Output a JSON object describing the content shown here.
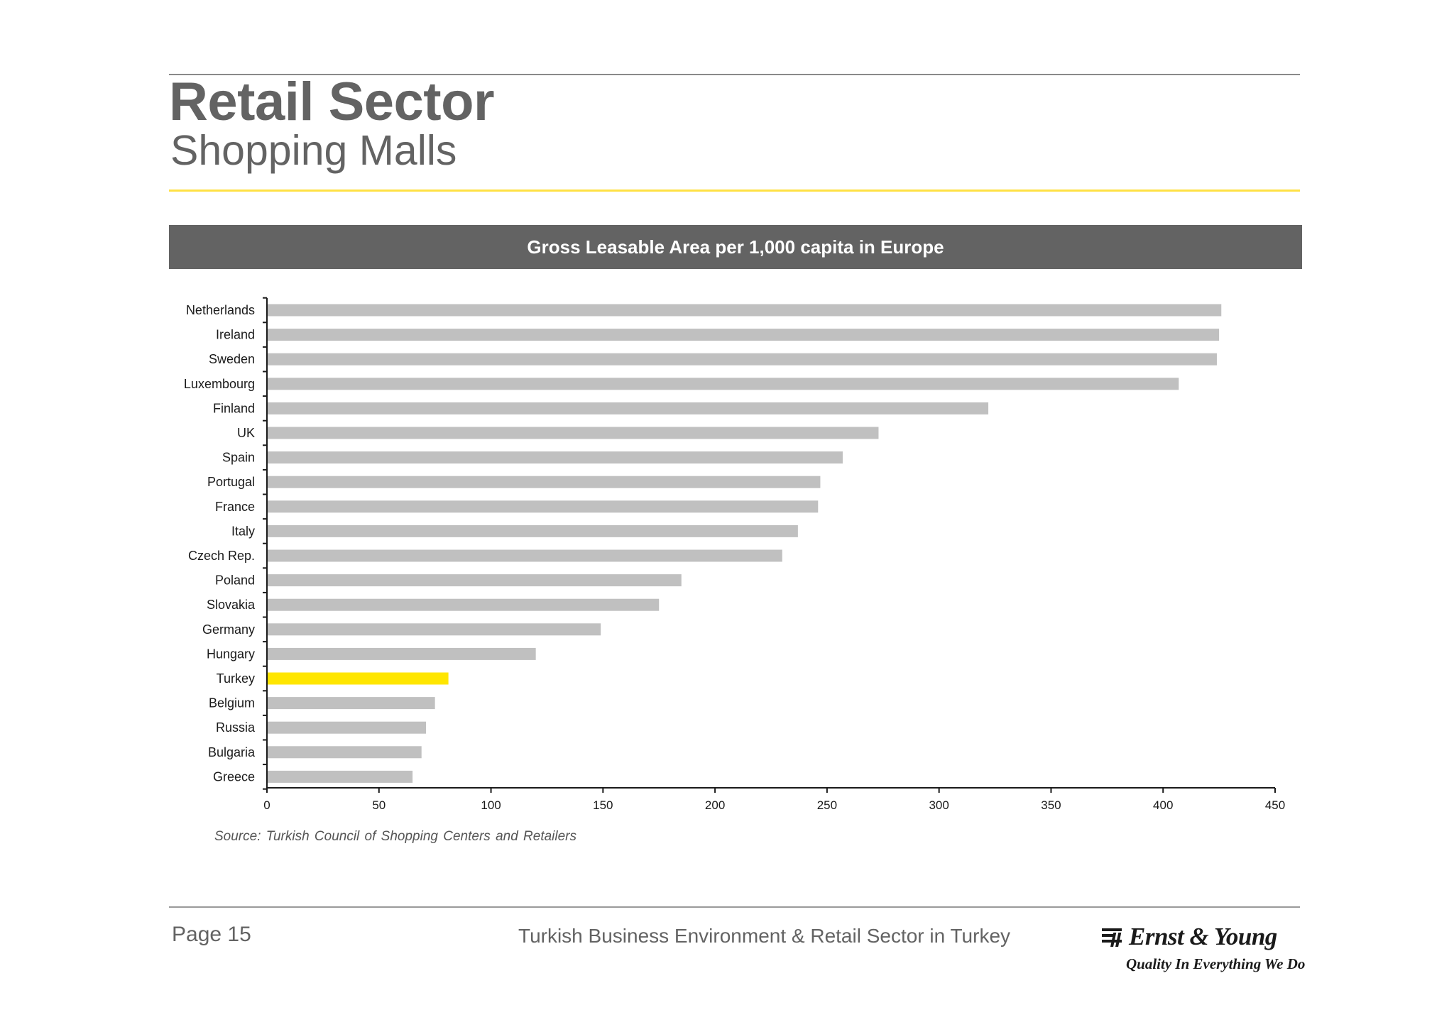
{
  "header": {
    "title": "Retail Sector",
    "subtitle": "Shopping Malls"
  },
  "banner": {
    "title": "Gross Leasable Area per 1,000 capita in Europe"
  },
  "chart_data": {
    "type": "bar",
    "orientation": "horizontal",
    "title": "Gross Leasable Area per 1,000 capita in Europe",
    "categories": [
      "Netherlands",
      "Ireland",
      "Sweden",
      "Luxembourg",
      "Finland",
      "UK",
      "Spain",
      "Portugal",
      "France",
      "Italy",
      "Czech Rep.",
      "Poland",
      "Slovakia",
      "Germany",
      "Hungary",
      "Turkey",
      "Belgium",
      "Russia",
      "Bulgaria",
      "Greece"
    ],
    "values": [
      426,
      425,
      424,
      407,
      322,
      273,
      257,
      247,
      246,
      237,
      230,
      185,
      175,
      149,
      120,
      81,
      75,
      71,
      69,
      65
    ],
    "highlight": "Turkey",
    "xlim": [
      0,
      450
    ],
    "xticks": [
      0,
      50,
      100,
      150,
      200,
      250,
      300,
      350,
      400,
      450
    ],
    "xlabel": "",
    "ylabel": "",
    "grid": false,
    "colors": {
      "bar": "#c0c0c0",
      "highlight": "#ffe600",
      "axis": "#1a1a1a"
    }
  },
  "source": "Source: Turkish Council of Shopping Centers and Retailers",
  "footer": {
    "page": "Page 15",
    "text": "Turkish Business Environment & Retail Sector in Turkey",
    "logo_name": "Ernst & Young",
    "logo_tagline": "Quality In Everything We Do"
  }
}
